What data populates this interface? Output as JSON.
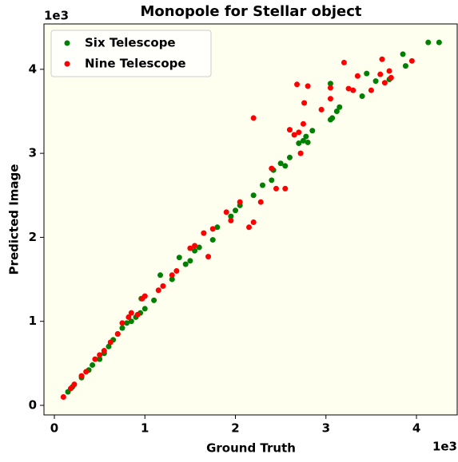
{
  "chart_data": {
    "type": "scatter",
    "title": "Monopole for Stellar object",
    "x_label": "Ground Truth",
    "y_label": "Predicted Image",
    "x_offset_label": "1e3",
    "y_offset_label": "1e3",
    "xlim": [
      -0.115,
      4.45
    ],
    "ylim": [
      -0.114,
      4.54
    ],
    "xticks": [
      0,
      1,
      2,
      3,
      4
    ],
    "yticks": [
      0,
      1,
      2,
      3,
      4
    ],
    "legend": "upper left",
    "background": "#fffff0",
    "series": [
      {
        "name": "Six Telescope",
        "color": "#008000",
        "x": [
          0.15,
          0.2,
          0.3,
          0.38,
          0.42,
          0.5,
          0.55,
          0.6,
          0.65,
          0.7,
          0.75,
          0.8,
          0.85,
          0.9,
          0.95,
          0.96,
          1.0,
          1.1,
          1.17,
          1.3,
          1.38,
          1.45,
          1.5,
          1.55,
          1.6,
          1.75,
          1.8,
          1.95,
          2.0,
          2.05,
          2.2,
          2.3,
          2.4,
          2.42,
          2.5,
          2.55,
          2.6,
          2.7,
          2.75,
          2.78,
          2.8,
          2.85,
          3.05,
          3.07,
          3.05,
          3.12,
          3.15,
          3.4,
          3.45,
          3.55,
          3.7,
          3.85,
          3.88,
          4.13,
          4.25
        ],
        "values": [
          0.16,
          0.22,
          0.33,
          0.42,
          0.48,
          0.55,
          0.62,
          0.7,
          0.78,
          0.85,
          0.92,
          0.98,
          1.0,
          1.05,
          1.1,
          1.27,
          1.15,
          1.25,
          1.55,
          1.5,
          1.76,
          1.68,
          1.72,
          1.84,
          1.88,
          1.97,
          2.12,
          2.25,
          2.32,
          2.38,
          2.5,
          2.62,
          2.68,
          2.8,
          2.88,
          2.85,
          2.95,
          3.12,
          3.15,
          3.2,
          3.13,
          3.27,
          3.4,
          3.42,
          3.83,
          3.5,
          3.55,
          3.68,
          3.95,
          3.86,
          3.88,
          4.18,
          4.04,
          4.32,
          4.32
        ]
      },
      {
        "name": "Nine Telescope",
        "color": "#ff0000",
        "x": [
          0.1,
          0.18,
          0.22,
          0.3,
          0.35,
          0.45,
          0.5,
          0.55,
          0.62,
          0.7,
          0.75,
          0.82,
          0.85,
          0.92,
          0.97,
          1.0,
          1.15,
          1.2,
          1.3,
          1.35,
          1.5,
          1.55,
          1.65,
          1.7,
          1.75,
          1.9,
          1.95,
          2.05,
          2.15,
          2.2,
          2.2,
          2.28,
          2.4,
          2.45,
          2.55,
          2.6,
          2.65,
          2.68,
          2.7,
          2.72,
          2.75,
          2.76,
          2.8,
          2.95,
          3.05,
          3.05,
          3.2,
          3.25,
          3.3,
          3.35,
          3.5,
          3.6,
          3.62,
          3.65,
          3.7,
          3.72,
          3.95
        ],
        "values": [
          0.1,
          0.2,
          0.25,
          0.35,
          0.4,
          0.55,
          0.6,
          0.65,
          0.75,
          0.85,
          0.98,
          1.05,
          1.1,
          1.08,
          1.27,
          1.3,
          1.37,
          1.42,
          1.55,
          1.6,
          1.87,
          1.9,
          2.05,
          1.77,
          2.1,
          2.3,
          2.2,
          2.42,
          2.12,
          2.18,
          3.42,
          2.42,
          2.82,
          2.58,
          2.58,
          3.28,
          3.22,
          3.82,
          3.25,
          3.0,
          3.35,
          3.6,
          3.8,
          3.52,
          3.65,
          3.78,
          4.08,
          3.77,
          3.75,
          3.92,
          3.75,
          3.94,
          4.12,
          3.84,
          3.98,
          3.9,
          4.1
        ]
      }
    ]
  }
}
